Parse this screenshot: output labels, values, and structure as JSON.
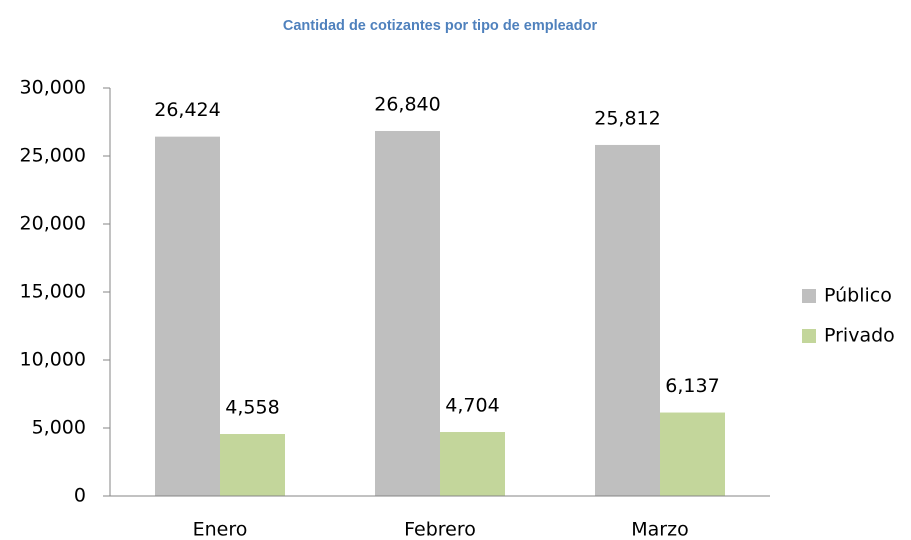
{
  "chart_data": {
    "type": "bar",
    "title": "Cantidad de cotizantes por tipo de empleador",
    "categories": [
      "Enero",
      "Febrero",
      "Marzo"
    ],
    "series": [
      {
        "name": "Público",
        "color": "#bfbfbf",
        "values": [
          26424,
          26840,
          25812
        ],
        "value_labels": [
          "26,424",
          "26,840",
          "25,812"
        ]
      },
      {
        "name": "Privado",
        "color": "#c3d69b",
        "values": [
          4558,
          4704,
          6137
        ],
        "value_labels": [
          "4,558",
          "4,704",
          "6,137"
        ]
      }
    ],
    "ylim": [
      0,
      30000
    ],
    "yticks": [
      0,
      {
        "value": 5000,
        "label": "5,000"
      },
      {
        "value": 10000,
        "label": "10,000"
      },
      {
        "value": 15000,
        "label": "15,000"
      },
      {
        "value": 20000,
        "label": "20,000"
      },
      {
        "value": 25000,
        "label": "25,000"
      },
      {
        "value": 30000,
        "label": "30,000"
      }
    ],
    "grid": false,
    "legend": "right"
  }
}
